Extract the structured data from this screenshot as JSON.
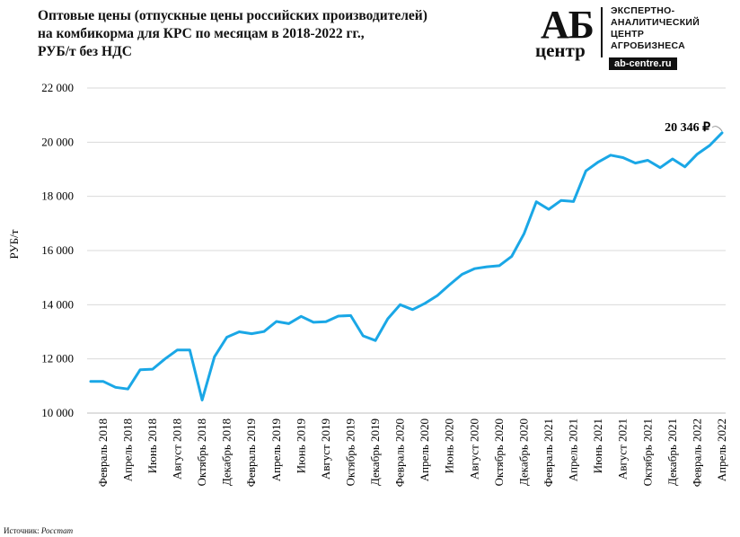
{
  "title_lines": [
    "Оптовые цены (отпускные цены российских производителей)",
    "на комбикорма для КРС по месяцам в 2018-2022 гг.,",
    "РУБ/т без НДС"
  ],
  "logo": {
    "ab": "АБ",
    "center": "центр",
    "line1": "ЭКСПЕРТНО-",
    "line2": "АНАЛИТИЧЕСКИЙ",
    "line3": "ЦЕНТР",
    "line4": "АГРОБИЗНЕСА",
    "site": "ab-centre.ru"
  },
  "source": {
    "label": "Источник:",
    "name": "Росстат"
  },
  "chart_data": {
    "type": "line",
    "ylabel": "РУБ/т",
    "ylim": [
      10000,
      22000
    ],
    "yticks": [
      10000,
      12000,
      14000,
      16000,
      18000,
      20000,
      22000
    ],
    "ytick_labels": [
      "10 000",
      "12 000",
      "14 000",
      "16 000",
      "18 000",
      "20 000",
      "22 000"
    ],
    "grid": true,
    "color": "#1aa7e6",
    "x": [
      "Январь 2018",
      "Февраль 2018",
      "Март 2018",
      "Апрель 2018",
      "Май 2018",
      "Июнь 2018",
      "Июль 2018",
      "Август 2018",
      "Сентябрь 2018",
      "Октябрь 2018",
      "Ноябрь 2018",
      "Декабрь 2018",
      "Январь 2019",
      "Февраль 2019",
      "Март 2019",
      "Апрель 2019",
      "Май 2019",
      "Июнь 2019",
      "Июль 2019",
      "Август 2019",
      "Сентябрь 2019",
      "Октябрь 2019",
      "Ноябрь 2019",
      "Декабрь 2019",
      "Январь 2020",
      "Февраль 2020",
      "Март 2020",
      "Апрель 2020",
      "Май 2020",
      "Июнь 2020",
      "Июль 2020",
      "Август 2020",
      "Сентябрь 2020",
      "Октябрь 2020",
      "Ноябрь 2020",
      "Декабрь 2020",
      "Январь 2021",
      "Февраль 2021",
      "Март 2021",
      "Апрель 2021",
      "Май 2021",
      "Июнь 2021",
      "Июль 2021",
      "Август 2021",
      "Сентябрь 2021",
      "Октябрь 2021",
      "Ноябрь 2021",
      "Декабрь 2021",
      "Январь 2022",
      "Февраль 2022",
      "Март 2022",
      "Апрель 2022"
    ],
    "x_tick_labels_shown": [
      "Февраль 2018",
      "Апрель 2018",
      "Июнь 2018",
      "Август 2018",
      "Октябрь 2018",
      "Декабрь 2018",
      "Февраль 2019",
      "Апрель 2019",
      "Июнь 2019",
      "Август 2019",
      "Октябрь 2019",
      "Декабрь 2019",
      "Февраль 2020",
      "Апрель 2020",
      "Июнь 2020",
      "Август 2020",
      "Октябрь 2020",
      "Декабрь 2020",
      "Февраль 2021",
      "Апрель 2021",
      "Июнь 2021",
      "Август 2021",
      "Октябрь 2021",
      "Декабрь 2021",
      "Февраль 2022",
      "Апрель 2022"
    ],
    "values": [
      11170,
      11170,
      10950,
      10890,
      11600,
      11620,
      12000,
      12330,
      12330,
      10480,
      12080,
      12800,
      13000,
      12930,
      13010,
      13380,
      13300,
      13570,
      13350,
      13370,
      13580,
      13600,
      12850,
      12680,
      13480,
      14000,
      13820,
      14050,
      14340,
      14740,
      15120,
      15330,
      15400,
      15440,
      15780,
      16620,
      17800,
      17520,
      17850,
      17810,
      18940,
      19270,
      19520,
      19430,
      19230,
      19330,
      19060,
      19380,
      19090,
      19560,
      19880,
      20346
    ],
    "annotation": "20 346 ₽"
  }
}
